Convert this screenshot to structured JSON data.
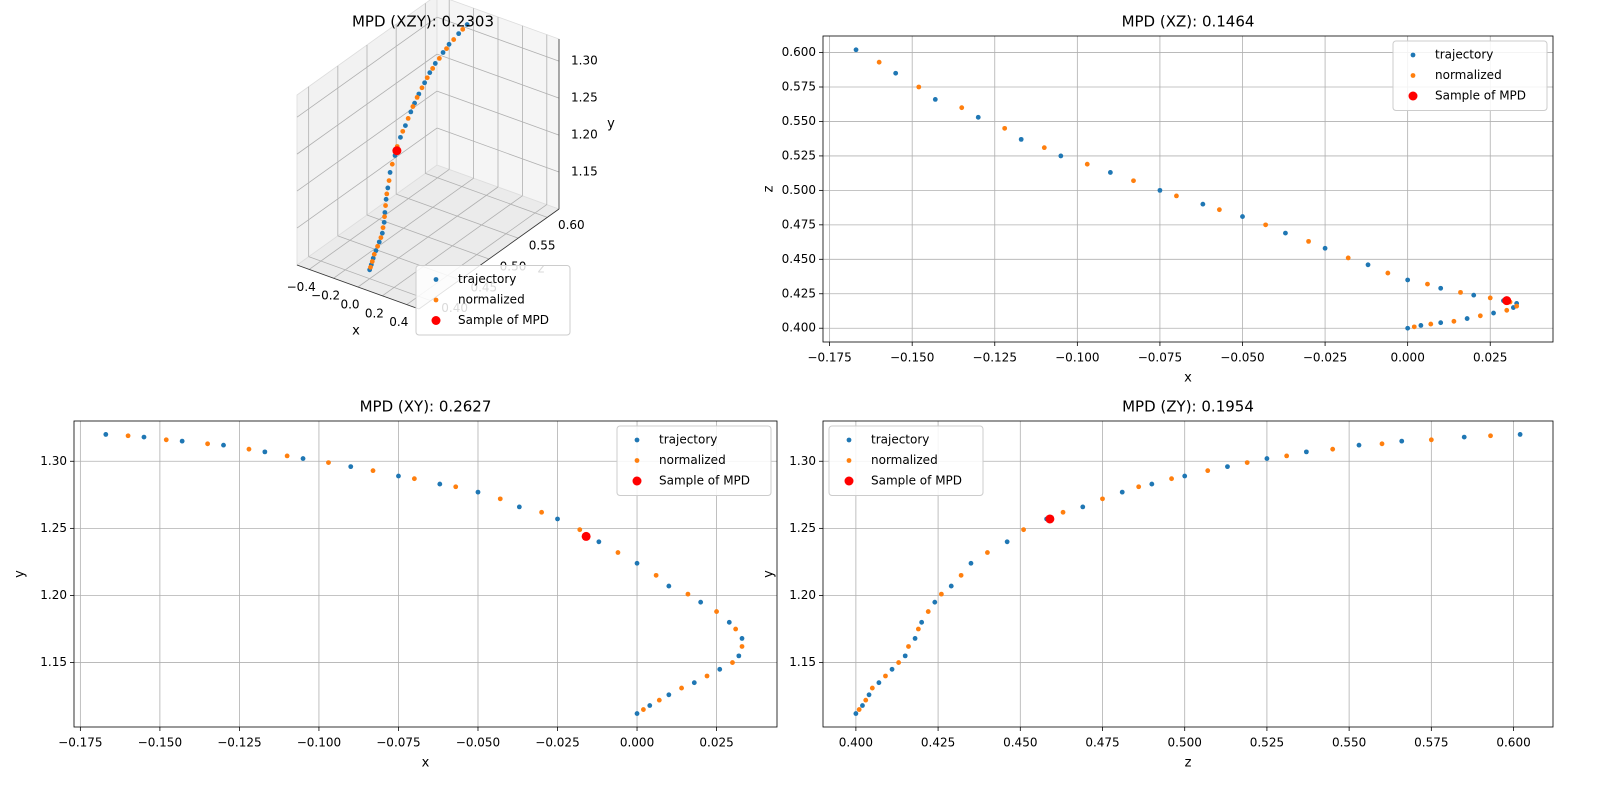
{
  "chart_data": [
    {
      "type": "scatter3d",
      "title": "MPD (XZY): 0.2303",
      "xlabel": "x",
      "ylabel": "y",
      "zlabel": "z",
      "xlim": [
        -0.5,
        0.5
      ],
      "ylim": [
        1.1,
        1.33
      ],
      "zlim": [
        0.38,
        0.62
      ],
      "xticks": [
        {
          "value": -0.4,
          "label": "−0.4"
        },
        {
          "value": -0.2,
          "label": "−0.2"
        },
        {
          "value": 0,
          "label": "0.0"
        },
        0.2,
        0.4
      ],
      "yticks": [
        1.15,
        {
          "value": 1.2,
          "label": "1.20"
        },
        1.25,
        {
          "value": 1.3,
          "label": "1.30"
        }
      ],
      "zticks": [
        {
          "value": 0.4,
          "label": "0.40"
        },
        0.45,
        {
          "value": 0.5,
          "label": "0.50"
        },
        0.55,
        {
          "value": 0.6,
          "label": "0.60"
        }
      ],
      "grid": true,
      "legend": "lower right",
      "series": [
        {
          "name": "trajectory",
          "color": "#1f77b4",
          "x": [
            -0.167,
            -0.155,
            -0.143,
            -0.13,
            -0.117,
            -0.105,
            -0.09,
            -0.075,
            -0.062,
            -0.05,
            -0.037,
            -0.025,
            -0.012,
            0,
            0.01,
            0.02,
            0.029,
            0.033,
            0.032,
            0.026,
            0.018,
            0.01,
            0.004,
            0
          ],
          "y": [
            1.32,
            1.318,
            1.315,
            1.312,
            1.307,
            1.302,
            1.296,
            1.289,
            1.283,
            1.277,
            1.266,
            1.257,
            1.24,
            1.224,
            1.207,
            1.195,
            1.18,
            1.168,
            1.155,
            1.145,
            1.135,
            1.126,
            1.118,
            1.112
          ],
          "z": [
            0.602,
            0.585,
            0.566,
            0.553,
            0.537,
            0.525,
            0.513,
            0.5,
            0.49,
            0.481,
            0.469,
            0.458,
            0.446,
            0.435,
            0.429,
            0.424,
            0.42,
            0.418,
            0.415,
            0.411,
            0.407,
            0.404,
            0.402,
            0.4
          ]
        },
        {
          "name": "normalized",
          "color": "#ff7f0e",
          "x": [
            -0.16,
            -0.148,
            -0.135,
            -0.122,
            -0.11,
            -0.097,
            -0.083,
            -0.07,
            -0.057,
            -0.043,
            -0.03,
            -0.018,
            -0.006,
            0.006,
            0.016,
            0.025,
            0.031,
            0.033,
            0.03,
            0.022,
            0.014,
            0.007,
            0.002
          ],
          "y": [
            1.319,
            1.316,
            1.313,
            1.309,
            1.304,
            1.299,
            1.293,
            1.287,
            1.281,
            1.272,
            1.262,
            1.249,
            1.232,
            1.215,
            1.201,
            1.188,
            1.175,
            1.162,
            1.15,
            1.14,
            1.131,
            1.122,
            1.115
          ],
          "z": [
            0.593,
            0.575,
            0.56,
            0.545,
            0.531,
            0.519,
            0.507,
            0.496,
            0.486,
            0.475,
            0.463,
            0.451,
            0.44,
            0.432,
            0.426,
            0.422,
            0.419,
            0.416,
            0.413,
            0.409,
            0.405,
            0.403,
            0.401
          ]
        },
        {
          "name": "Sample of MPD",
          "color": "#ff0000",
          "x": [
            -0.016
          ],
          "y": [
            1.244
          ],
          "z": [
            0.45
          ]
        }
      ]
    },
    {
      "type": "scatter",
      "title": "MPD (XZ): 0.1464",
      "xlabel": "x",
      "ylabel": "z",
      "xlim": [
        -0.177,
        0.044
      ],
      "ylim": [
        0.39,
        0.612
      ],
      "xticks": [
        {
          "value": -0.175,
          "label": "−0.175"
        },
        {
          "value": -0.15,
          "label": "−0.150"
        },
        {
          "value": -0.125,
          "label": "−0.125"
        },
        {
          "value": -0.1,
          "label": "−0.100"
        },
        {
          "value": -0.075,
          "label": "−0.075"
        },
        {
          "value": -0.05,
          "label": "−0.050"
        },
        {
          "value": -0.025,
          "label": "−0.025"
        },
        {
          "value": 0,
          "label": "0.000"
        },
        0.025
      ],
      "yticks": [
        {
          "value": 0.4,
          "label": "0.400"
        },
        0.425,
        {
          "value": 0.45,
          "label": "0.450"
        },
        0.475,
        {
          "value": 0.5,
          "label": "0.500"
        },
        0.525,
        {
          "value": 0.55,
          "label": "0.550"
        },
        0.575,
        {
          "value": 0.6,
          "label": "0.600"
        }
      ],
      "grid": true,
      "legend": "upper right",
      "series": [
        {
          "name": "trajectory",
          "color": "#1f77b4",
          "x": [
            -0.167,
            -0.155,
            -0.143,
            -0.13,
            -0.117,
            -0.105,
            -0.09,
            -0.075,
            -0.062,
            -0.05,
            -0.037,
            -0.025,
            -0.012,
            0,
            0.01,
            0.02,
            0.029,
            0.033,
            0.032,
            0.026,
            0.018,
            0.01,
            0.004,
            0
          ],
          "y": [
            0.602,
            0.585,
            0.566,
            0.553,
            0.537,
            0.525,
            0.513,
            0.5,
            0.49,
            0.481,
            0.469,
            0.458,
            0.446,
            0.435,
            0.429,
            0.424,
            0.42,
            0.418,
            0.415,
            0.411,
            0.407,
            0.404,
            0.402,
            0.4
          ]
        },
        {
          "name": "normalized",
          "color": "#ff7f0e",
          "x": [
            -0.16,
            -0.148,
            -0.135,
            -0.122,
            -0.11,
            -0.097,
            -0.083,
            -0.07,
            -0.057,
            -0.043,
            -0.03,
            -0.018,
            -0.006,
            0.006,
            0.016,
            0.025,
            0.031,
            0.033,
            0.03,
            0.022,
            0.014,
            0.007,
            0.002
          ],
          "y": [
            0.593,
            0.575,
            0.56,
            0.545,
            0.531,
            0.519,
            0.507,
            0.496,
            0.486,
            0.475,
            0.463,
            0.451,
            0.44,
            0.432,
            0.426,
            0.422,
            0.419,
            0.416,
            0.413,
            0.409,
            0.405,
            0.403,
            0.401
          ]
        },
        {
          "name": "Sample of MPD",
          "color": "#ff0000",
          "x": [
            0.03
          ],
          "y": [
            0.42
          ]
        }
      ]
    },
    {
      "type": "scatter",
      "title": "MPD (XY): 0.2627",
      "xlabel": "x",
      "ylabel": "y",
      "xlim": [
        -0.177,
        0.044
      ],
      "ylim": [
        1.102,
        1.33
      ],
      "xticks": [
        {
          "value": -0.175,
          "label": "−0.175"
        },
        {
          "value": -0.15,
          "label": "−0.150"
        },
        {
          "value": -0.125,
          "label": "−0.125"
        },
        {
          "value": -0.1,
          "label": "−0.100"
        },
        {
          "value": -0.075,
          "label": "−0.075"
        },
        {
          "value": -0.05,
          "label": "−0.050"
        },
        {
          "value": -0.025,
          "label": "−0.025"
        },
        {
          "value": 0,
          "label": "0.000"
        },
        0.025
      ],
      "yticks": [
        1.15,
        {
          "value": 1.2,
          "label": "1.20"
        },
        1.25,
        {
          "value": 1.3,
          "label": "1.30"
        }
      ],
      "grid": true,
      "legend": "upper right",
      "series": [
        {
          "name": "trajectory",
          "color": "#1f77b4",
          "x": [
            -0.167,
            -0.155,
            -0.143,
            -0.13,
            -0.117,
            -0.105,
            -0.09,
            -0.075,
            -0.062,
            -0.05,
            -0.037,
            -0.025,
            -0.012,
            0,
            0.01,
            0.02,
            0.029,
            0.033,
            0.032,
            0.026,
            0.018,
            0.01,
            0.004,
            0
          ],
          "y": [
            1.32,
            1.318,
            1.315,
            1.312,
            1.307,
            1.302,
            1.296,
            1.289,
            1.283,
            1.277,
            1.266,
            1.257,
            1.24,
            1.224,
            1.207,
            1.195,
            1.18,
            1.168,
            1.155,
            1.145,
            1.135,
            1.126,
            1.118,
            1.112
          ]
        },
        {
          "name": "normalized",
          "color": "#ff7f0e",
          "x": [
            -0.16,
            -0.148,
            -0.135,
            -0.122,
            -0.11,
            -0.097,
            -0.083,
            -0.07,
            -0.057,
            -0.043,
            -0.03,
            -0.018,
            -0.006,
            0.006,
            0.016,
            0.025,
            0.031,
            0.033,
            0.03,
            0.022,
            0.014,
            0.007,
            0.002
          ],
          "y": [
            1.319,
            1.316,
            1.313,
            1.309,
            1.304,
            1.299,
            1.293,
            1.287,
            1.281,
            1.272,
            1.262,
            1.249,
            1.232,
            1.215,
            1.201,
            1.188,
            1.175,
            1.162,
            1.15,
            1.14,
            1.131,
            1.122,
            1.115
          ]
        },
        {
          "name": "Sample of MPD",
          "color": "#ff0000",
          "x": [
            -0.016
          ],
          "y": [
            1.244
          ]
        }
      ]
    },
    {
      "type": "scatter",
      "title": "MPD (ZY): 0.1954",
      "xlabel": "z",
      "ylabel": "y",
      "xlim": [
        0.39,
        0.612
      ],
      "ylim": [
        1.102,
        1.33
      ],
      "xticks": [
        {
          "value": 0.4,
          "label": "0.400"
        },
        0.425,
        {
          "value": 0.45,
          "label": "0.450"
        },
        0.475,
        {
          "value": 0.5,
          "label": "0.500"
        },
        0.525,
        {
          "value": 0.55,
          "label": "0.550"
        },
        0.575,
        {
          "value": 0.6,
          "label": "0.600"
        }
      ],
      "yticks": [
        1.15,
        {
          "value": 1.2,
          "label": "1.20"
        },
        1.25,
        {
          "value": 1.3,
          "label": "1.30"
        }
      ],
      "grid": true,
      "legend": "upper left",
      "series": [
        {
          "name": "trajectory",
          "color": "#1f77b4",
          "x": [
            0.602,
            0.585,
            0.566,
            0.553,
            0.537,
            0.525,
            0.513,
            0.5,
            0.49,
            0.481,
            0.469,
            0.458,
            0.446,
            0.435,
            0.429,
            0.424,
            0.42,
            0.418,
            0.415,
            0.411,
            0.407,
            0.404,
            0.402,
            0.4
          ],
          "y": [
            1.32,
            1.318,
            1.315,
            1.312,
            1.307,
            1.302,
            1.296,
            1.289,
            1.283,
            1.277,
            1.266,
            1.257,
            1.24,
            1.224,
            1.207,
            1.195,
            1.18,
            1.168,
            1.155,
            1.145,
            1.135,
            1.126,
            1.118,
            1.112
          ]
        },
        {
          "name": "normalized",
          "color": "#ff7f0e",
          "x": [
            0.593,
            0.575,
            0.56,
            0.545,
            0.531,
            0.519,
            0.507,
            0.496,
            0.486,
            0.475,
            0.463,
            0.451,
            0.44,
            0.432,
            0.426,
            0.422,
            0.419,
            0.416,
            0.413,
            0.409,
            0.405,
            0.403,
            0.401
          ],
          "y": [
            1.319,
            1.316,
            1.313,
            1.309,
            1.304,
            1.299,
            1.293,
            1.287,
            1.281,
            1.272,
            1.262,
            1.249,
            1.232,
            1.215,
            1.201,
            1.188,
            1.175,
            1.162,
            1.15,
            1.14,
            1.131,
            1.122,
            1.115
          ]
        },
        {
          "name": "Sample of MPD",
          "color": "#ff0000",
          "x": [
            0.459
          ],
          "y": [
            1.257
          ]
        }
      ]
    }
  ]
}
